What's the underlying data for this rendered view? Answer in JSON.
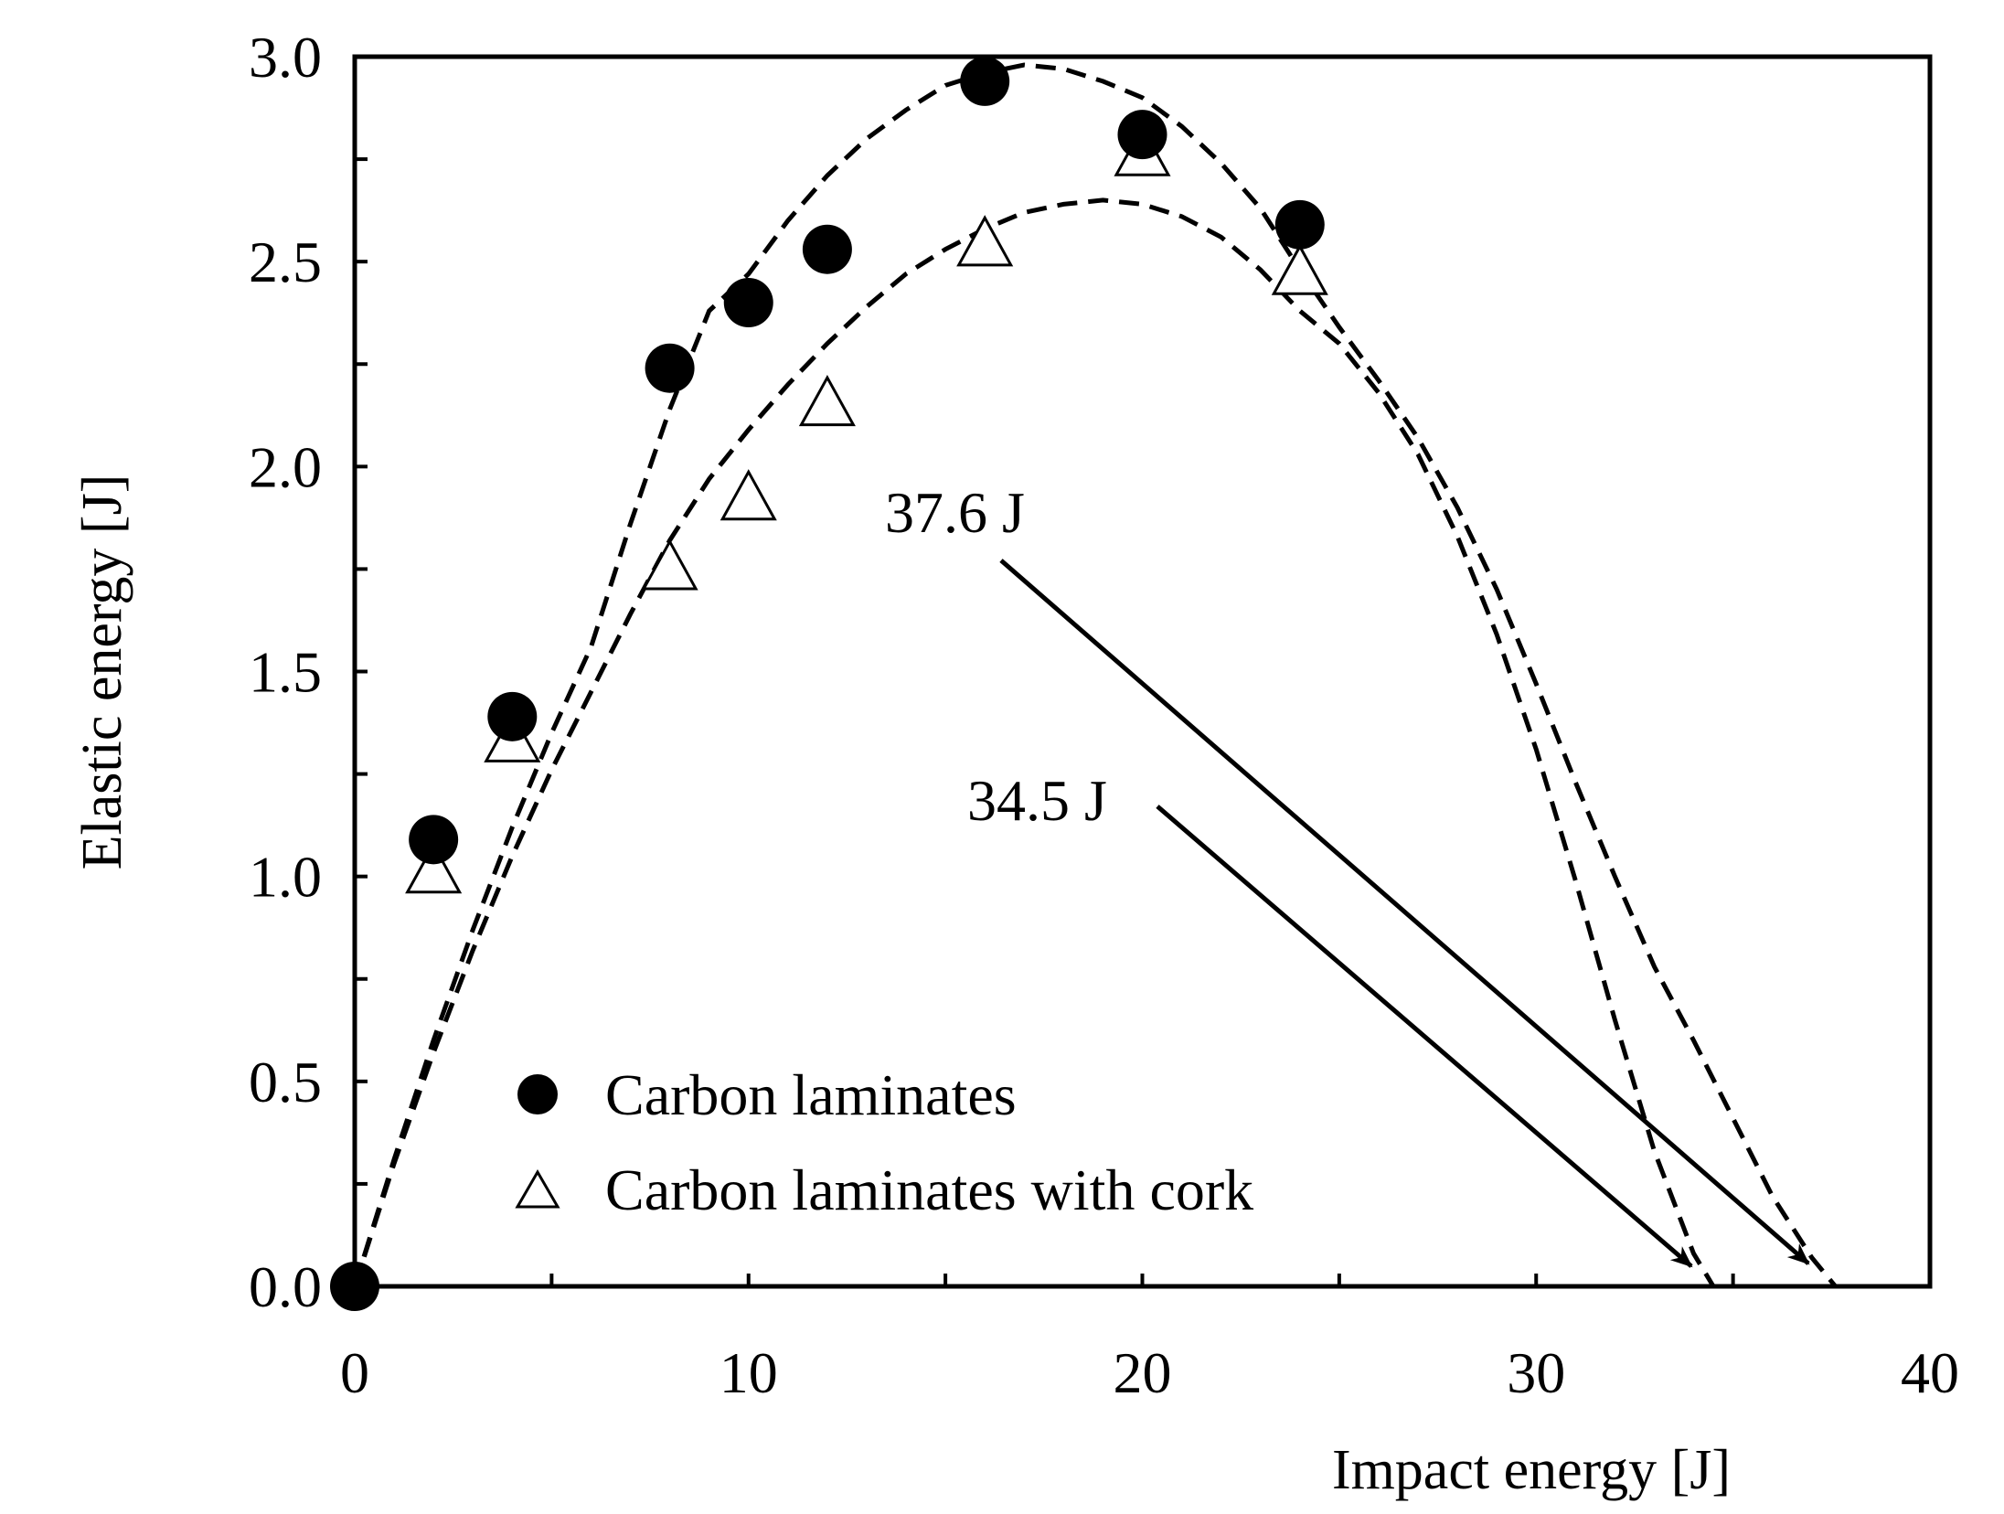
{
  "chart_data": {
    "type": "scatter",
    "title": "",
    "xlabel": "Impact energy [J]",
    "ylabel": "Elastic energy [J]",
    "xlim": [
      0,
      40
    ],
    "ylim": [
      0,
      3.0
    ],
    "x_major_ticks": [
      0,
      10,
      20,
      30,
      40
    ],
    "x_tick_labels": [
      "0",
      "10",
      "20",
      "30",
      "40"
    ],
    "x_minor_ticks": [
      5,
      15,
      25,
      35
    ],
    "y_major_ticks": [
      0,
      0.5,
      1.0,
      1.5,
      2.0,
      2.5,
      3.0
    ],
    "y_tick_labels": [
      "0.0",
      "0.5",
      "1.0",
      "1.5",
      "2.0",
      "2.5",
      "3.0"
    ],
    "y_minor_ticks": [
      0.25,
      0.75,
      1.25,
      1.75,
      2.25,
      2.75
    ],
    "grid": false,
    "legend_position": "bottom-left",
    "series": [
      {
        "name": "Carbon laminates",
        "marker": "filled-circle",
        "x": [
          0,
          2,
          4,
          8,
          10,
          12,
          16,
          20,
          24
        ],
        "y": [
          0.0,
          1.09,
          1.39,
          2.24,
          2.4,
          2.53,
          2.94,
          2.81,
          2.59
        ]
      },
      {
        "name": "Carbon laminates with cork",
        "marker": "open-triangle",
        "x": [
          2,
          4,
          8,
          10,
          12,
          16,
          20,
          24
        ],
        "y": [
          1.01,
          1.33,
          1.75,
          1.92,
          2.15,
          2.54,
          2.76,
          2.47
        ]
      }
    ],
    "fit_curves": [
      {
        "name": "Carbon laminates fit",
        "style": "dashed",
        "x": [
          0,
          1,
          2,
          3,
          4,
          5,
          6,
          7,
          8,
          9,
          10,
          11,
          12,
          13,
          14,
          15,
          16,
          17,
          18,
          19,
          20,
          21,
          22,
          23,
          24,
          25,
          26,
          27,
          28,
          29,
          30,
          31,
          32,
          33,
          34,
          35,
          36,
          37,
          37.6
        ],
        "y": [
          0.0,
          0.31,
          0.6,
          0.87,
          1.12,
          1.35,
          1.56,
          1.86,
          2.14,
          2.38,
          2.47,
          2.6,
          2.71,
          2.8,
          2.87,
          2.93,
          2.96,
          2.98,
          2.97,
          2.94,
          2.9,
          2.83,
          2.74,
          2.63,
          2.48,
          2.34,
          2.21,
          2.07,
          1.9,
          1.7,
          1.47,
          1.23,
          1.0,
          0.78,
          0.6,
          0.41,
          0.22,
          0.07,
          0.0
        ]
      },
      {
        "name": "Carbon laminates with cork fit",
        "style": "dashed",
        "x": [
          0,
          1,
          2,
          3,
          4,
          5,
          6,
          7,
          8,
          9,
          10,
          11,
          12,
          13,
          14,
          15,
          16,
          17,
          18,
          19,
          20,
          21,
          22,
          23,
          24,
          25,
          26,
          27,
          28,
          29,
          30,
          31,
          32,
          33,
          34,
          34.5
        ],
        "y": [
          0.0,
          0.3,
          0.57,
          0.82,
          1.05,
          1.26,
          1.45,
          1.64,
          1.82,
          1.97,
          2.09,
          2.2,
          2.3,
          2.39,
          2.47,
          2.53,
          2.58,
          2.62,
          2.64,
          2.65,
          2.64,
          2.61,
          2.56,
          2.48,
          2.38,
          2.3,
          2.18,
          2.03,
          1.83,
          1.59,
          1.31,
          0.99,
          0.65,
          0.33,
          0.08,
          0.0
        ]
      }
    ],
    "annotations": [
      {
        "text": "37.6 J",
        "target_x": 37.6,
        "target_y": 0.0
      },
      {
        "text": "34.5 J",
        "target_x": 34.5,
        "target_y": 0.0
      }
    ]
  }
}
